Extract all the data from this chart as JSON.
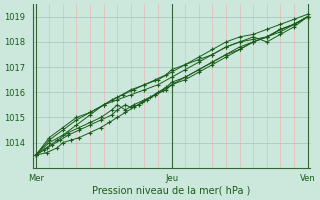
{
  "title": "",
  "xlabel": "Pression niveau de la mer( hPa )",
  "ylabel": "",
  "bg_color": "#cce8dc",
  "plot_bg_color": "#cce8dc",
  "line_color": "#1a5c1a",
  "grid_color_v": "#e8b8b8",
  "grid_color_h": "#aaccc0",
  "ylim": [
    1013.0,
    1019.5
  ],
  "yticks": [
    1014,
    1015,
    1016,
    1017,
    1018,
    1019
  ],
  "xtick_labels": [
    "Mer",
    "Jeu",
    "Ven"
  ],
  "xtick_positions": [
    0.0,
    0.5,
    1.0
  ],
  "n_vgrid": 20,
  "series": [
    {
      "x": [
        0.0,
        0.05,
        0.1,
        0.15,
        0.2,
        0.25,
        0.3,
        0.35,
        0.4,
        0.45,
        0.5,
        0.55,
        0.6,
        0.65,
        0.7,
        0.75,
        0.8,
        0.85,
        0.9,
        0.95,
        1.0
      ],
      "y": [
        1013.5,
        1014.0,
        1014.3,
        1014.7,
        1015.1,
        1015.5,
        1015.8,
        1016.1,
        1016.3,
        1016.5,
        1016.8,
        1017.1,
        1017.4,
        1017.7,
        1018.0,
        1018.2,
        1018.3,
        1018.5,
        1018.7,
        1018.9,
        1019.1
      ]
    },
    {
      "x": [
        0.0,
        0.05,
        0.1,
        0.15,
        0.2,
        0.25,
        0.3,
        0.35,
        0.4,
        0.45,
        0.5,
        0.55,
        0.6,
        0.65,
        0.7,
        0.75,
        0.8,
        0.85,
        0.9,
        0.95,
        1.0
      ],
      "y": [
        1013.5,
        1014.1,
        1014.5,
        1014.9,
        1015.2,
        1015.5,
        1015.7,
        1015.9,
        1016.1,
        1016.3,
        1016.6,
        1016.9,
        1017.2,
        1017.5,
        1017.8,
        1018.0,
        1018.1,
        1018.2,
        1018.5,
        1018.7,
        1019.0
      ]
    },
    {
      "x": [
        0.0,
        0.05,
        0.1,
        0.15,
        0.2,
        0.25,
        0.28,
        0.32,
        0.36,
        0.4,
        0.44,
        0.48,
        0.5,
        0.55,
        0.6,
        0.65,
        0.7,
        0.75,
        0.8,
        0.85,
        0.9,
        0.95,
        1.0
      ],
      "y": [
        1013.5,
        1014.2,
        1014.6,
        1015.0,
        1015.2,
        1015.5,
        1015.7,
        1015.9,
        1016.1,
        1016.3,
        1016.5,
        1016.7,
        1016.9,
        1017.1,
        1017.3,
        1017.5,
        1017.8,
        1018.0,
        1018.2,
        1018.0,
        1018.3,
        1018.6,
        1019.0
      ]
    },
    {
      "x": [
        0.0,
        0.04,
        0.08,
        0.12,
        0.16,
        0.2,
        0.24,
        0.28,
        0.3,
        0.33,
        0.36,
        0.4,
        0.44,
        0.48,
        0.5,
        0.55,
        0.6,
        0.65,
        0.7,
        0.75,
        0.8,
        0.85,
        0.9,
        0.95,
        1.0
      ],
      "y": [
        1013.5,
        1013.8,
        1014.1,
        1014.4,
        1014.6,
        1014.8,
        1015.0,
        1015.3,
        1015.5,
        1015.3,
        1015.5,
        1015.7,
        1015.9,
        1016.1,
        1016.3,
        1016.6,
        1016.9,
        1017.2,
        1017.5,
        1017.7,
        1018.0,
        1018.2,
        1018.4,
        1018.7,
        1019.0
      ]
    },
    {
      "x": [
        0.0,
        0.03,
        0.06,
        0.09,
        0.12,
        0.16,
        0.2,
        0.24,
        0.28,
        0.3,
        0.33,
        0.35,
        0.38,
        0.41,
        0.44,
        0.47,
        0.5,
        0.55,
        0.6,
        0.65,
        0.7,
        0.75,
        0.8,
        0.85,
        0.9,
        0.95,
        1.0
      ],
      "y": [
        1013.5,
        1013.7,
        1013.9,
        1014.1,
        1014.3,
        1014.5,
        1014.7,
        1014.9,
        1015.1,
        1015.3,
        1015.5,
        1015.4,
        1015.5,
        1015.7,
        1015.9,
        1016.1,
        1016.3,
        1016.5,
        1016.8,
        1017.1,
        1017.4,
        1017.7,
        1018.0,
        1018.2,
        1018.5,
        1018.7,
        1019.0
      ]
    },
    {
      "x": [
        0.0,
        0.04,
        0.08,
        0.1,
        0.13,
        0.16,
        0.2,
        0.24,
        0.27,
        0.3,
        0.33,
        0.36,
        0.39,
        0.42,
        0.45,
        0.48,
        0.5,
        0.55,
        0.6,
        0.65,
        0.7,
        0.75,
        0.8,
        0.85,
        0.9,
        0.95,
        1.0
      ],
      "y": [
        1013.5,
        1013.6,
        1013.8,
        1014.0,
        1014.1,
        1014.2,
        1014.4,
        1014.6,
        1014.8,
        1015.0,
        1015.2,
        1015.4,
        1015.6,
        1015.8,
        1016.0,
        1016.2,
        1016.4,
        1016.6,
        1016.9,
        1017.2,
        1017.5,
        1017.8,
        1018.0,
        1018.2,
        1018.5,
        1018.7,
        1019.0
      ]
    }
  ]
}
